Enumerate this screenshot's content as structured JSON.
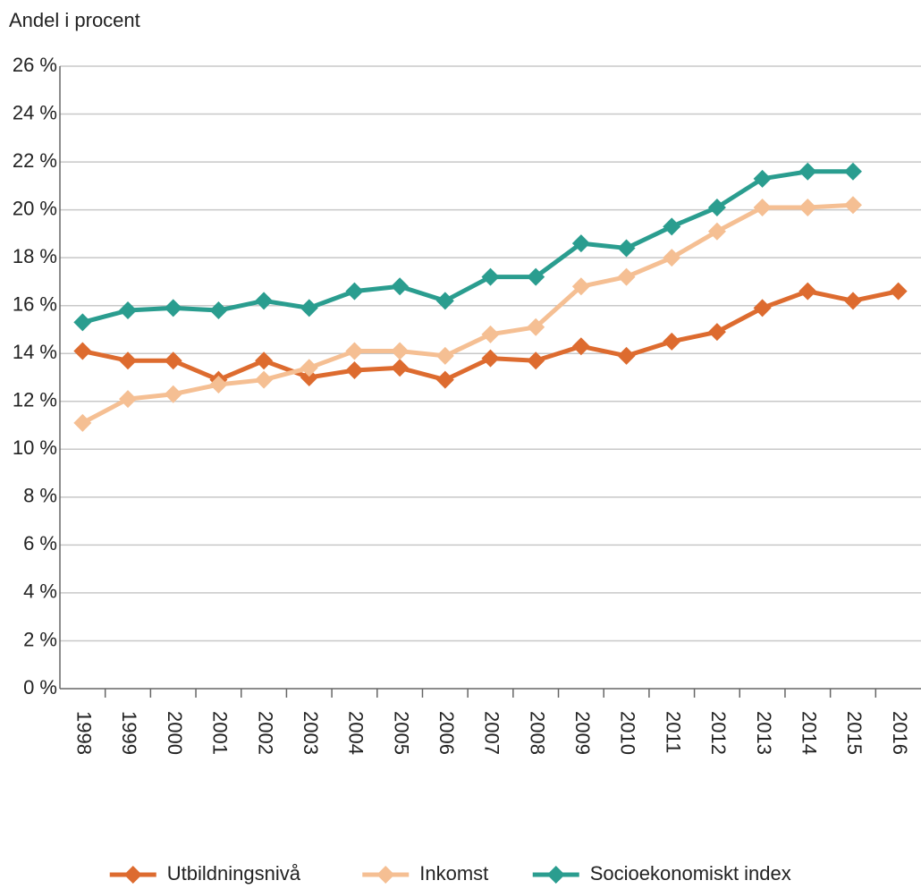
{
  "chart_data": {
    "type": "line",
    "ylabel": "Andel i procent",
    "categories": [
      "1998",
      "1999",
      "2000",
      "2001",
      "2002",
      "2003",
      "2004",
      "2005",
      "2006",
      "2007",
      "2008",
      "2009",
      "2010",
      "2011",
      "2012",
      "2013",
      "2014",
      "2015",
      "2016"
    ],
    "series": [
      {
        "name": "Utbildningsnivå",
        "color": "#dd6b2f",
        "values": [
          14.1,
          13.7,
          13.7,
          12.9,
          13.7,
          13.0,
          13.3,
          13.4,
          12.9,
          13.8,
          13.7,
          14.3,
          13.9,
          14.5,
          14.9,
          15.9,
          16.6,
          16.2,
          16.6
        ]
      },
      {
        "name": "Inkomst",
        "color": "#f5bf93",
        "values": [
          11.1,
          12.1,
          12.3,
          12.7,
          12.9,
          13.4,
          14.1,
          14.1,
          13.9,
          14.8,
          15.1,
          16.8,
          17.2,
          18.0,
          19.1,
          20.1,
          20.1,
          20.2,
          null
        ]
      },
      {
        "name": "Socioekonomiskt index",
        "color": "#2a9d8f",
        "values": [
          15.3,
          15.8,
          15.9,
          15.8,
          16.2,
          15.9,
          16.6,
          16.8,
          16.2,
          17.2,
          17.2,
          18.6,
          18.4,
          19.3,
          20.1,
          21.3,
          21.6,
          21.6,
          null
        ]
      }
    ],
    "ylim": [
      0,
      26
    ],
    "yticks": [
      {
        "value": 0,
        "label": "0 %"
      },
      {
        "value": 2,
        "label": "2 %"
      },
      {
        "value": 4,
        "label": "4 %"
      },
      {
        "value": 6,
        "label": "6 %"
      },
      {
        "value": 8,
        "label": "8 %"
      },
      {
        "value": 10,
        "label": "10 %"
      },
      {
        "value": 12,
        "label": "12 %"
      },
      {
        "value": 14,
        "label": "14 %"
      },
      {
        "value": 16,
        "label": "16 %"
      },
      {
        "value": 18,
        "label": "18 %"
      },
      {
        "value": 20,
        "label": "20 %"
      },
      {
        "value": 22,
        "label": "22 %"
      },
      {
        "value": 24,
        "label": "24 %"
      },
      {
        "value": 26,
        "label": "26 %"
      }
    ],
    "grid": true,
    "legend": "bottom"
  }
}
